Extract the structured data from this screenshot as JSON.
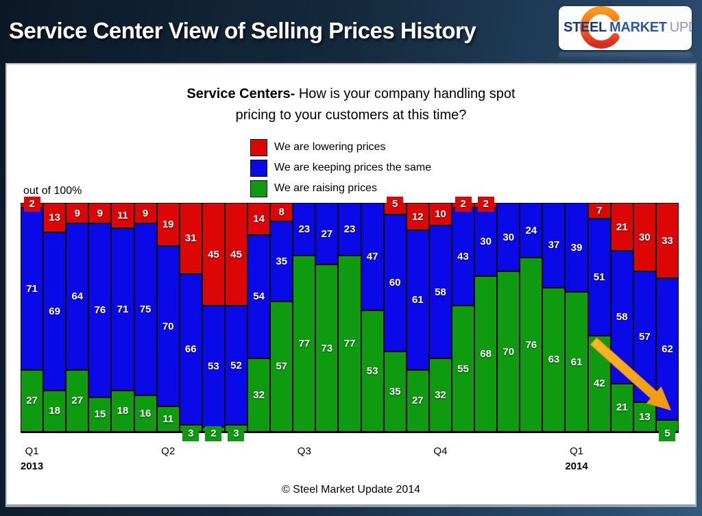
{
  "header": {
    "title": "Service Center View of Selling Prices History",
    "logo": {
      "word1": "STEEL",
      "word2": "MARKET",
      "word3": "UPDATE"
    }
  },
  "chart": {
    "title_bold": "Service Centers-",
    "title_rest": " How is your company handling spot",
    "title_line2": "pricing to your customers at this time?",
    "axis_note": "out of 100%",
    "footer": "© Steel Market Update 2014"
  },
  "chart_data": {
    "type": "bar",
    "subtype": "percent-stacked-column",
    "title": "Service Centers- How is your company handling spot pricing to your customers at this time?",
    "ylim": [
      0,
      100
    ],
    "axis_note": "out of 100%",
    "legend_position": "top-center",
    "n_bars": 29,
    "series": [
      {
        "key": "lowering",
        "name": "We are lowering prices",
        "color": "#dd0606",
        "values": [
          2,
          13,
          9,
          9,
          11,
          9,
          19,
          31,
          45,
          45,
          14,
          8,
          0,
          0,
          0,
          0,
          5,
          12,
          10,
          2,
          2,
          0,
          0,
          0,
          0,
          7,
          21,
          30,
          33
        ]
      },
      {
        "key": "keeping",
        "name": "We are keeping prices the same",
        "color": "#0a0ae8",
        "values": [
          71,
          69,
          64,
          76,
          71,
          75,
          70,
          66,
          53,
          52,
          54,
          35,
          23,
          27,
          23,
          47,
          60,
          61,
          58,
          43,
          30,
          30,
          24,
          37,
          39,
          51,
          58,
          57,
          62
        ]
      },
      {
        "key": "raising",
        "name": "We are raising prices",
        "color": "#0e9b10",
        "values": [
          27,
          18,
          27,
          15,
          18,
          16,
          11,
          3,
          2,
          3,
          32,
          57,
          77,
          73,
          77,
          53,
          35,
          27,
          32,
          55,
          68,
          70,
          76,
          63,
          61,
          42,
          21,
          13,
          5
        ]
      }
    ],
    "x_ticks": [
      {
        "label": "Q1",
        "year": "2013",
        "bar": 1
      },
      {
        "label": "Q2",
        "year": "",
        "bar": 7
      },
      {
        "label": "Q3",
        "year": "",
        "bar": 13
      },
      {
        "label": "Q4",
        "year": "",
        "bar": 19
      },
      {
        "label": "Q1",
        "year": "2014",
        "bar": 25
      }
    ],
    "annotation_arrow_color": "#f6a413"
  }
}
